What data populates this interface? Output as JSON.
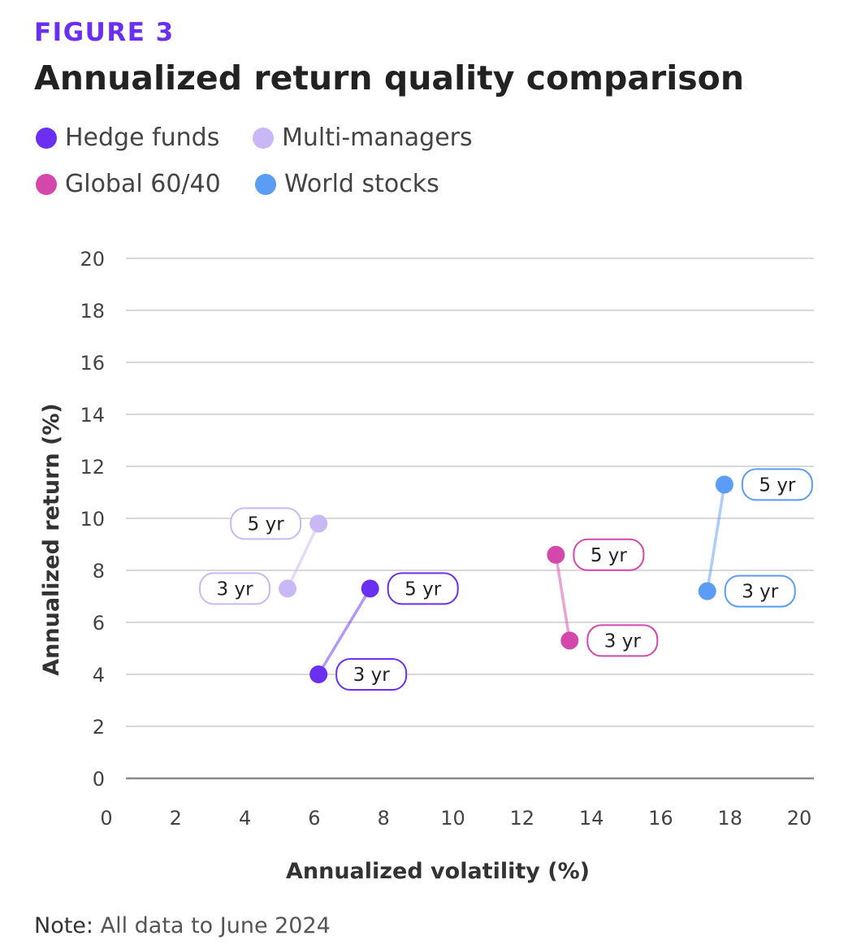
{
  "figure_label": "FIGURE 3",
  "chart_title": "Annualized return quality comparison",
  "note": {
    "label": "Note:",
    "text": "All data to June 2024"
  },
  "chart_data": {
    "type": "scatter",
    "xlabel": "Annualized volatility (%)",
    "ylabel": "Annualized return (%)",
    "xlim": [
      0,
      20
    ],
    "ylim": [
      0,
      20
    ],
    "xticks": [
      "0",
      "2",
      "4",
      "6",
      "8",
      "10",
      "12",
      "14",
      "16",
      "18",
      "20"
    ],
    "yticks": [
      "0",
      "2",
      "4",
      "6",
      "8",
      "10",
      "12",
      "14",
      "16",
      "18",
      "20"
    ],
    "grid": "horizontal",
    "legend_position": "top-left",
    "series": [
      {
        "name": "Hedge funds",
        "color": "#6a2ff0",
        "label_side": "right",
        "points": [
          {
            "label": "3 yr",
            "x": 5.6,
            "y": 4.0
          },
          {
            "label": "5 yr",
            "x": 7.1,
            "y": 7.3
          }
        ]
      },
      {
        "name": "Multi-managers",
        "color": "#c9b8f5",
        "label_side": "left",
        "points": [
          {
            "label": "3 yr",
            "x": 4.7,
            "y": 7.3
          },
          {
            "label": "5 yr",
            "x": 5.6,
            "y": 9.8
          }
        ]
      },
      {
        "name": "Global 60/40",
        "color": "#d447ab",
        "label_side": "right",
        "points": [
          {
            "label": "3 yr",
            "x": 12.9,
            "y": 5.3
          },
          {
            "label": "5 yr",
            "x": 12.5,
            "y": 8.6
          }
        ]
      },
      {
        "name": "World stocks",
        "color": "#5b9cf5",
        "label_side": "right",
        "points": [
          {
            "label": "3 yr",
            "x": 16.9,
            "y": 7.2
          },
          {
            "label": "5 yr",
            "x": 17.4,
            "y": 11.3
          }
        ]
      }
    ]
  }
}
